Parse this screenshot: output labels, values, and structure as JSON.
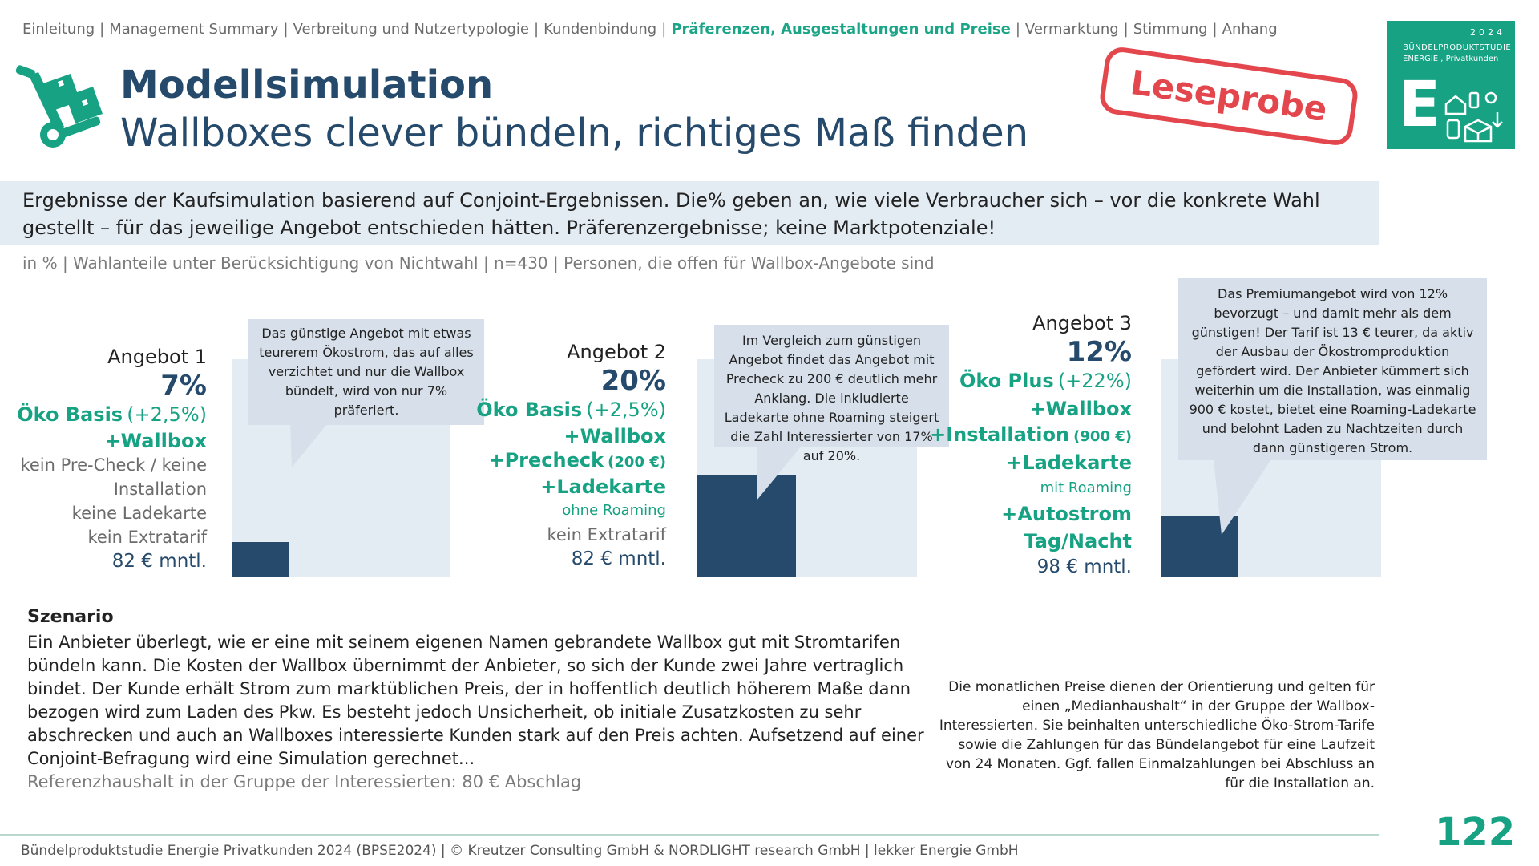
{
  "nav": {
    "items": [
      "Einleitung",
      "Management Summary",
      "Verbreitung und Nutzertypologie",
      "Kundenbindung",
      "Präferenzen, Ausgestaltungen und Preise",
      "Vermarktung",
      "Stimmung",
      "Anhang"
    ],
    "separator": "|",
    "active_index": 4
  },
  "header": {
    "title": "Modellsimulation",
    "subtitle": "Wallboxes clever bündeln, richtiges Maß finden",
    "stamp": "Leseprobe",
    "icon": "cart-boxes-icon"
  },
  "badge": {
    "year": "2024",
    "line1": "BÜNDELPRODUKTSTUDIE",
    "line2": "ENERGIE  , Privatkunden",
    "letter": "E"
  },
  "intro": "Ergebnisse der Kaufsimulation basierend auf Conjoint-Ergebnissen. Die% geben an, wie viele Verbraucher sich – vor die konkrete Wahl gestellt – für das jeweilige Angebot entschieden hätten. Präferenzergebnisse; keine Marktpotenziale!",
  "meta": "in % | Wahlanteile unter Berücksichtigung von Nichtwahl | n=430 | Personen, die offen für Wallbox-Angebote sind",
  "chart_data": {
    "type": "bar",
    "title": "Wahlanteile unter Berücksichtigung von Nichtwahl",
    "ylabel": "in %",
    "ylim": [
      0,
      43
    ],
    "categories": [
      "Angebot 1",
      "Angebot 2",
      "Angebot 3"
    ],
    "values": [
      7,
      20,
      12
    ],
    "value_labels": [
      "7%",
      "20%",
      "12%"
    ],
    "colors": {
      "bar": "#264a6b",
      "background": "#e3ebf3",
      "accent": "#16a283"
    }
  },
  "offers": [
    {
      "name": "Angebot 1",
      "pct": "7%",
      "tariff": "Öko Basis",
      "tariff_delta": "(+2,5%)",
      "features": [
        "+Wallbox"
      ],
      "extras": [
        "kein Pre-Check / keine",
        "Installation",
        "keine Ladekarte",
        "kein Extratarif"
      ],
      "price": "82 € mntl.",
      "callout": "Das günstige Angebot mit etwas teurerem Ökostrom, das auf alles verzichtet und nur die Wallbox bündelt, wird von nur 7% präferiert."
    },
    {
      "name": "Angebot 2",
      "pct": "20%",
      "tariff": "Öko Basis",
      "tariff_delta": "(+2,5%)",
      "features": [
        "+Wallbox",
        "+Precheck",
        "+Ladekarte"
      ],
      "precheck_price": "(200 €)",
      "ladekarte_note": "ohne Roaming",
      "extras": [
        "kein Extratarif"
      ],
      "price": "82 € mntl.",
      "callout": "Im Vergleich zum günstigen Angebot findet das Angebot mit Precheck zu 200 € deutlich mehr Anklang. Die inkludierte Ladekarte ohne Roaming steigert die Zahl Interessierter von 17% auf 20%."
    },
    {
      "name": "Angebot 3",
      "pct": "12%",
      "tariff": "Öko Plus",
      "tariff_delta": "(+22%)",
      "features": [
        "+Wallbox",
        "+Installation",
        "+Ladekarte",
        "+Autostrom",
        "Tag/Nacht"
      ],
      "installation_price": "(900 €)",
      "ladekarte_note": "mit Roaming",
      "price": "98 € mntl.",
      "callout": "Das Premiumangebot wird von 12% bevorzugt – und damit mehr als dem günstigen! Der Tarif ist 13 € teurer, da aktiv der Ausbau der Ökostromproduktion gefördert wird. Der Anbieter kümmert sich weiterhin um die Installation, was einmalig 900 € kostet, bietet eine Roaming-Ladekarte und belohnt Laden zu Nachtzeiten durch dann günstigeren Strom."
    }
  ],
  "scenario": {
    "title": "Szenario",
    "text": "Ein Anbieter überlegt, wie er eine mit seinem eigenen Namen gebrandete Wallbox gut mit Stromtarifen bündeln kann. Die Kosten der Wallbox übernimmt der Anbieter, so sich der Kunde zwei Jahre vertraglich bindet. Der Kunde erhält Strom zum marktüblichen Preis, der in hoffentlich deutlich höherem Maße dann bezogen wird zum Laden des Pkw. Es besteht jedoch Unsicherheit, ob initiale Zusatzkosten zu sehr abschrecken und auch an Wallboxes interessierte Kunden stark auf den Preis achten. Aufsetzend auf einer Conjoint-Befragung wird eine Simulation gerechnet...",
    "reference": "Referenzhaushalt in der Gruppe der Interessierten: 80 € Abschlag"
  },
  "price_note": "Die monatlichen Preise dienen der Orientierung und gelten für einen „Medianhaushalt“ in der Gruppe der Wallbox-Interessierten. Sie beinhalten unterschiedliche Öko-Strom-Tarife sowie die Zahlungen für das Bündelangebot für eine Laufzeit von 24 Monaten.  Ggf. fallen Einmalzahlungen bei Abschluss an für die Installation an.",
  "footer": {
    "text": "Bündelproduktstudie Energie Privatkunden 2024 (BPSE2024) | © Kreutzer Consulting GmbH & NORDLIGHT research GmbH | lekker Energie GmbH",
    "page": "122"
  }
}
